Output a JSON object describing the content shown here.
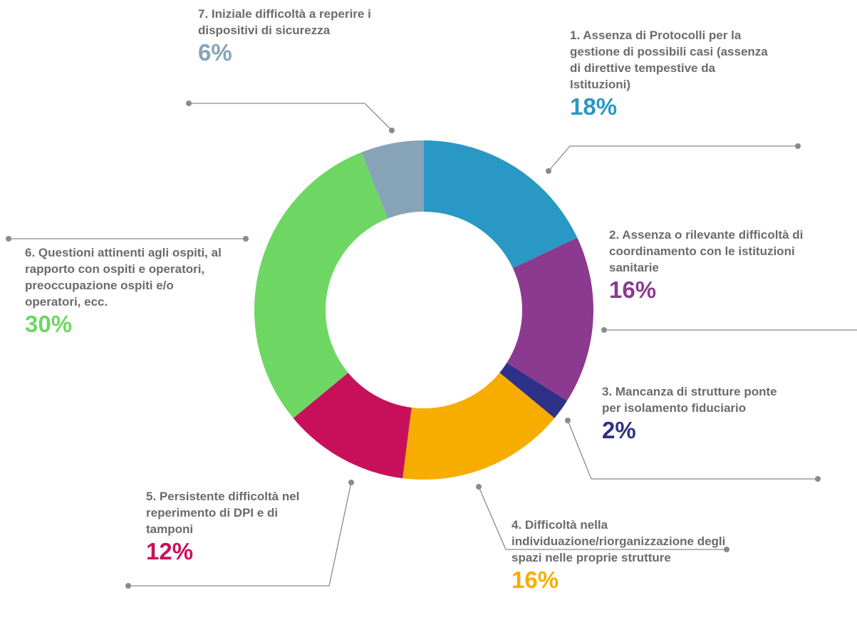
{
  "chart_data": {
    "type": "donut",
    "categories": [
      "1. Assenza di Protocolli per la gestione di possibili casi (assenza di direttive tempestive da Istituzioni)",
      "2. Assenza o rilevante difficoltà di coordinamento con le istituzioni sanitarie",
      "3. Mancanza di strutture ponte per isolamento fiduciario",
      "4. Difficoltà nella individuazione/riorganizzazione degli spazi nelle proprie strutture",
      "5. Persistente difficoltà nel reperimento di DPI e di tamponi",
      "6. Questioni attinenti agli ospiti, al rapporto con ospiti e operatori, preoccupazione ospiti e/o operatori, ecc.",
      "7. Iniziale difficoltà a reperire i dispositivi di sicurezza"
    ],
    "values": [
      18,
      16,
      2,
      16,
      12,
      30,
      6
    ],
    "value_labels": [
      "18%",
      "16%",
      "2%",
      "16%",
      "12%",
      "30%",
      "6%"
    ],
    "colors": [
      "#2a98c4",
      "#8b3a8f",
      "#2e3188",
      "#f7ad00",
      "#c8105a",
      "#6ed763",
      "#87a3b8"
    ]
  }
}
